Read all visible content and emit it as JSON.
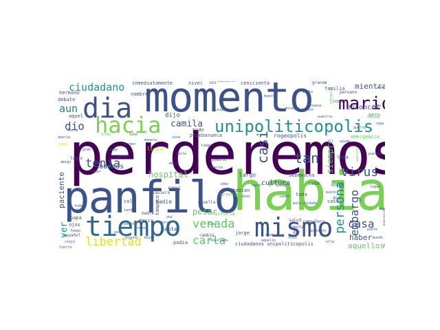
{
  "palette": {
    "deep_purple": "#440154",
    "indigo": "#3b528b",
    "teal": "#21918c",
    "green": "#5ec962",
    "light_green": "#7ad151",
    "yellow": "#dde318"
  },
  "words": {
    "perderemos": "perderemos",
    "momento": "momento",
    "habia": "habia",
    "panfilo": "panfilo",
    "tiempo": "tiempo",
    "dia": "dia",
    "hacia": "hacia",
    "mismo": "mismo",
    "unipoliticopolis": "unipoliticopolis",
    "mario": "mario",
    "persona": "persona",
    "ciudadano": "ciudadano",
    "venada": "venada",
    "casi": "casi",
    "carla": "carla",
    "libertad": "libertad",
    "virus": "virus",
    "tenia": "tenia",
    "tan": "tan",
    "casa": "casa",
    "embargo": "embargo",
    "dio": "dio",
    "aun": "aun",
    "camila": "camila",
    "mientras": "mientras",
    "entonces": "entonces",
    "siempre": "siempre",
    "ver": "ver",
    "hospital": "hospital",
    "pesar": "pesar",
    "haber": "haber",
    "aquellos": "aquellos",
    "cultura": "cultura",
    "paciente": "paciente",
    "ademas": "ademas",
    "inmediatamente": "inmediatamente",
    "nivel": "nivel",
    "voz": "voz",
    "empezaron": "empezaron",
    "cenicienta": "cenicienta",
    "grande": "grande",
    "familia": "familia",
    "peruano": "peruano",
    "hermano": "hermano",
    "debate": "debate",
    "nombre": "nombre",
    "rogeopolis": "rogeopolis",
    "prueba": "prueba",
    "nunca": "nunca",
    "pudo": "pudo",
    "dijo": "dijo",
    "aquel": "aquel",
    "emergencia": "emergencia",
    "ciudadanos_unipoliticopolis": "ciudadanos unipoliticopolis",
    "gente": "gente",
    "nadie": "nadie",
    "habian": "habian",
    "largo": "largo",
    "toda": "toda",
    "mucha": "mucha",
    "cada": "cada",
    "podia": "podia",
    "jorge": "jorge",
    "historia": "historia",
    "pronto": "pronto",
    "cola": "cola",
    "papa": "papa",
    "ojos": "ojos",
    "decir": "decir",
    "madre": "madre",
    "siquiera": "siquiera",
    "tampoco": "tampoco",
    "aquella": "aquella",
    "pueblo": "pueblo",
    "cambio": "cambio",
    "ceni": "ceni",
    "bebe": "bebe",
    "caso": "caso",
    "dos": "dos",
    "salud": "salud",
    "lima": "lima",
    "peru": "peru",
    "noche": "noche",
    "ayuda": "ayuda",
    "cuenta": "cuenta",
    "dar": "dar",
    "lugar": "lugar",
    "mano": "mano",
    "vida": "vida",
    "paso": "paso",
    "problema": "problema",
    "bosque": "bosque",
    "puerta": "puerta",
    "logro": "logro",
    "mayor": "mayor",
    "llegar": "llegar",
    "espanol": "español",
    "companero": "compañero",
    "medio": "medio",
    "nueva": "nueva",
    "ideas": "ideas",
    "manera": "manera",
    "mejor": "mejor",
    "primer": "primer",
    "opinion": "opinion",
    "trabajo": "trabajo",
    "fuerza": "fuerza",
    "llego": "llego",
    "gran": "gran",
    "dijeron": "dijeron",
    "queria": "queria",
    "pena": "pena",
    "poder": "poder",
    "hacer": "hacer",
    "idea": "idea",
    "calle": "calle",
    "ahora": "ahora",
    "forma": "forma",
    "sino": "sino",
    "luego": "luego",
    "amigo": "amigo",
    "senor": "señor",
    "claro": "claro",
    "todos": "todos",
    "tarde": "tarde",
    "libre": "libre",
    "ropa": "ropa",
    "guerra": "guerra",
    "sueno": "sueño",
    "punto": "punto",
    "gobierno": "gobierno",
    "ella": "ella",
    "hijo": "hijo",
    "mujer": "mujer",
    "parte": "parte",
    "razon": "razon",
    "vez": "vez",
    "hora": "hora",
    "esperanza": "esperanza",
    "resultado": "resultado",
    "aquello": "aquello",
    "pais": "pais",
    "viejo": "viejo",
    "fuego": "fuego",
    "tierra": "tierra",
    "nuevo": "nuevo",
    "mundo": "mundo",
    "pobre": "pobre",
    "tipo": "tipo",
    "dias": "dias",
    "cosa": "cosa",
    "mala": "mala",
    "alguna": "alguna",
    "cuidado": "cuidado",
    "durante": "durante",
    "muerte": "muerte",
    "ciudad": "ciudad",
    "juntos": "juntos",
    "nuestra": "nuestra"
  }
}
